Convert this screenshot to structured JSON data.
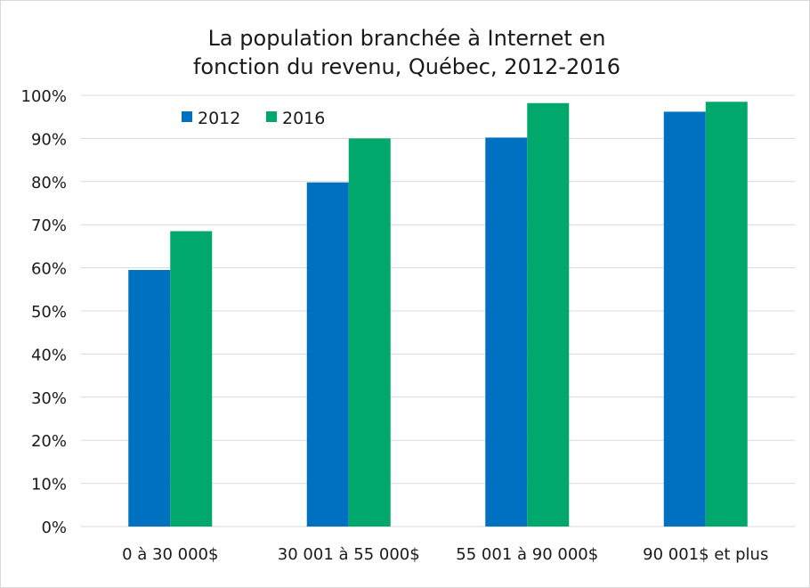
{
  "chart_data": {
    "type": "bar",
    "title_lines": [
      "La population branchée à Internet en",
      "fonction du revenu, Québec, 2012-2016"
    ],
    "categories": [
      "0 à 30 000$",
      "30 001 à 55 000$",
      "55 001 à 90 000$",
      "90 001$ et plus"
    ],
    "series": [
      {
        "name": "2012",
        "color": "#0070c0",
        "values": [
          59.5,
          79.8,
          90.2,
          96.2
        ]
      },
      {
        "name": "2016",
        "color": "#00a86b",
        "values": [
          68.5,
          90.0,
          98.2,
          98.5
        ]
      }
    ],
    "ylim": [
      0,
      100
    ],
    "yticks": [
      0,
      10,
      20,
      30,
      40,
      50,
      60,
      70,
      80,
      90,
      100
    ],
    "ytick_labels": [
      "0%",
      "10%",
      "20%",
      "30%",
      "40%",
      "50%",
      "60%",
      "70%",
      "80%",
      "90%",
      "100%"
    ],
    "grid": true,
    "legend_position": "top-left",
    "gridline_color": "#d9d9d9"
  }
}
